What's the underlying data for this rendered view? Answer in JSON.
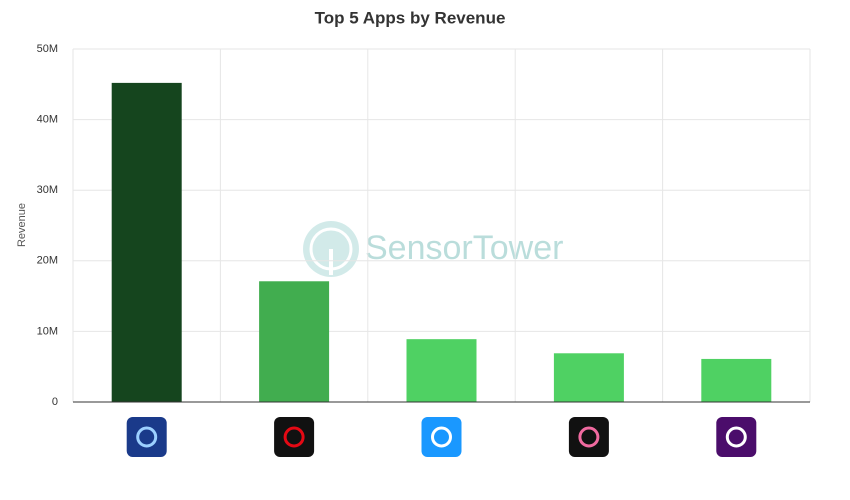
{
  "chart_data": {
    "type": "bar",
    "title": "Top 5 Apps by Revenue",
    "y_label": "Revenue",
    "watermark": "SensorTower",
    "categories": [
      null,
      null,
      null,
      null,
      null
    ],
    "values": [
      45200000,
      17100000,
      8900000,
      6900000,
      6100000
    ],
    "colors": [
      "#15451e",
      "#41ad4f",
      "#4fd163",
      "#4fd163",
      "#4fd163"
    ],
    "ylim": [
      0,
      50000000
    ],
    "yticks": [
      0,
      {
        "value": 10000000,
        "label": "10M"
      },
      {
        "value": 20000000,
        "label": "20M"
      },
      {
        "value": 30000000,
        "label": "30M"
      },
      {
        "value": 40000000,
        "label": "40M"
      },
      {
        "value": 50000000,
        "label": "50M"
      }
    ],
    "grid": true
  }
}
